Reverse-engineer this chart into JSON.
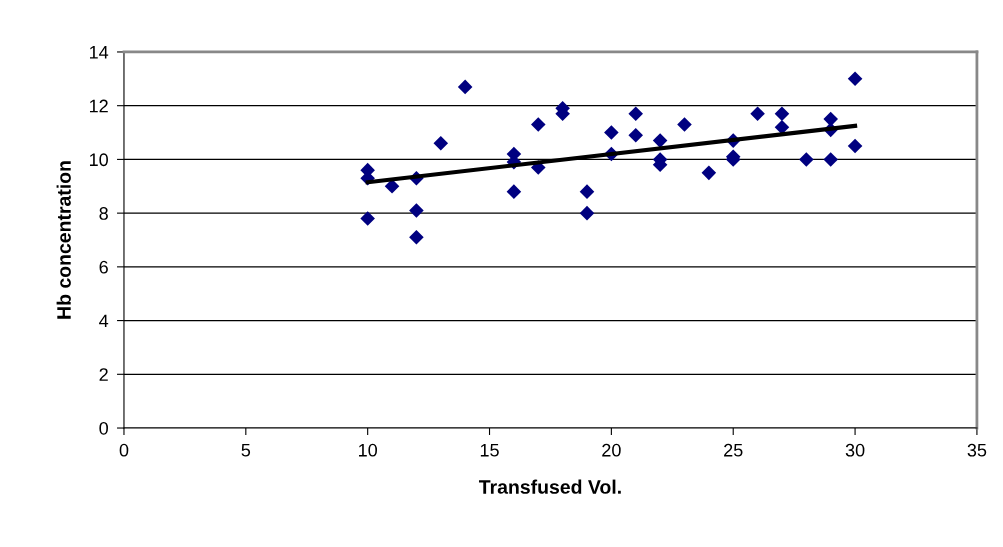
{
  "chart_data": {
    "type": "scatter",
    "xlabel": "Transfused Vol.",
    "ylabel": "Hb concentration",
    "xlim": [
      0,
      35
    ],
    "xticks": [
      0,
      5,
      10,
      15,
      20,
      25,
      30,
      35
    ],
    "ylim": [
      0,
      14
    ],
    "yticks": [
      0,
      2,
      4,
      6,
      8,
      10,
      12,
      14
    ],
    "grid": "y",
    "legend": false,
    "marker": "diamond",
    "series": [
      {
        "color": "#000080",
        "x": [
          10,
          10,
          10,
          11,
          12,
          12,
          12,
          13,
          14,
          16,
          16,
          16,
          17,
          17,
          18,
          18,
          19,
          19,
          20,
          20,
          21,
          21,
          22,
          22,
          22,
          23,
          24,
          25,
          25,
          25,
          26,
          27,
          27,
          28,
          29,
          29,
          29,
          30,
          30
        ],
        "values": [
          9.6,
          9.3,
          7.8,
          9.0,
          9.3,
          8.1,
          7.1,
          10.6,
          12.7,
          10.2,
          9.9,
          8.8,
          11.3,
          9.7,
          11.9,
          11.7,
          8.8,
          8.0,
          11.0,
          10.2,
          11.7,
          10.9,
          10.7,
          10.0,
          9.8,
          11.3,
          9.5,
          10.7,
          10.1,
          10.0,
          11.7,
          11.7,
          11.2,
          10.0,
          11.5,
          11.1,
          10.0,
          13.0,
          10.5
        ]
      },
      {
        "type": "line",
        "color": "#000000",
        "marker": "none",
        "x": [
          10,
          30
        ],
        "values": [
          9.15,
          11.25
        ]
      }
    ]
  }
}
